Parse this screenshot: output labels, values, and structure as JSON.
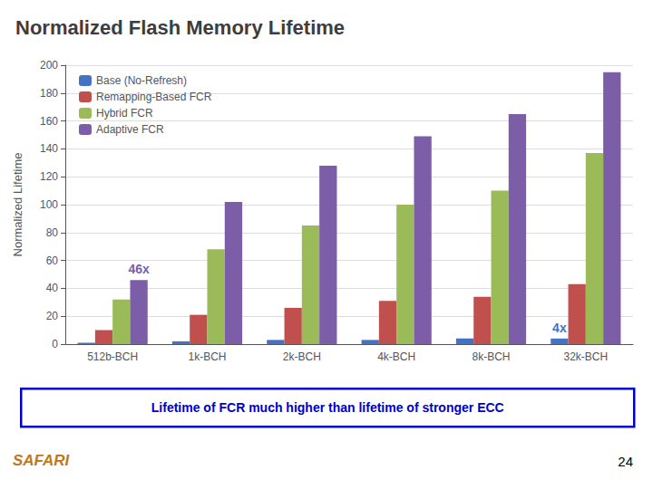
{
  "chart_data": {
    "type": "bar",
    "title": "Normalized Flash Memory Lifetime",
    "ylabel": "Normalized Lifetime",
    "categories": [
      "512b-BCH",
      "1k-BCH",
      "2k-BCH",
      "4k-BCH",
      "8k-BCH",
      "32k-BCH"
    ],
    "series": [
      {
        "name": "Base (No-Refresh)",
        "color": "#4472C4",
        "values": [
          1,
          2,
          3,
          3,
          4,
          4
        ]
      },
      {
        "name": "Remapping-Based FCR",
        "color": "#C0504D",
        "values": [
          10,
          21,
          26,
          31,
          34,
          43
        ]
      },
      {
        "name": "Hybrid FCR",
        "color": "#9BBB59",
        "values": [
          32,
          68,
          85,
          100,
          110,
          137
        ]
      },
      {
        "name": "Adaptive FCR",
        "color": "#7B5EA7",
        "values": [
          46,
          102,
          128,
          149,
          165,
          195
        ]
      }
    ],
    "ylim": [
      0,
      200
    ],
    "yticks": [
      0,
      20,
      40,
      60,
      80,
      100,
      120,
      140,
      160,
      180,
      200
    ],
    "grid": true,
    "legend": "upper left",
    "annotations": [
      {
        "text": "46x",
        "color": "#7B5EA7",
        "series": "Adaptive FCR",
        "category": "512b-BCH"
      },
      {
        "text": "4x",
        "color": "#4472C4",
        "series": "Base (No-Refresh)",
        "category": "32k-BCH"
      },
      {
        "text": "Lifetime of FCR much higher than lifetime of stronger ECC",
        "color": "#0000CC",
        "position": "footer"
      },
      {
        "text": "SAFARI",
        "color": "#C07820",
        "position": "bottom left"
      },
      {
        "text": "24",
        "position": "bottom right"
      }
    ]
  }
}
